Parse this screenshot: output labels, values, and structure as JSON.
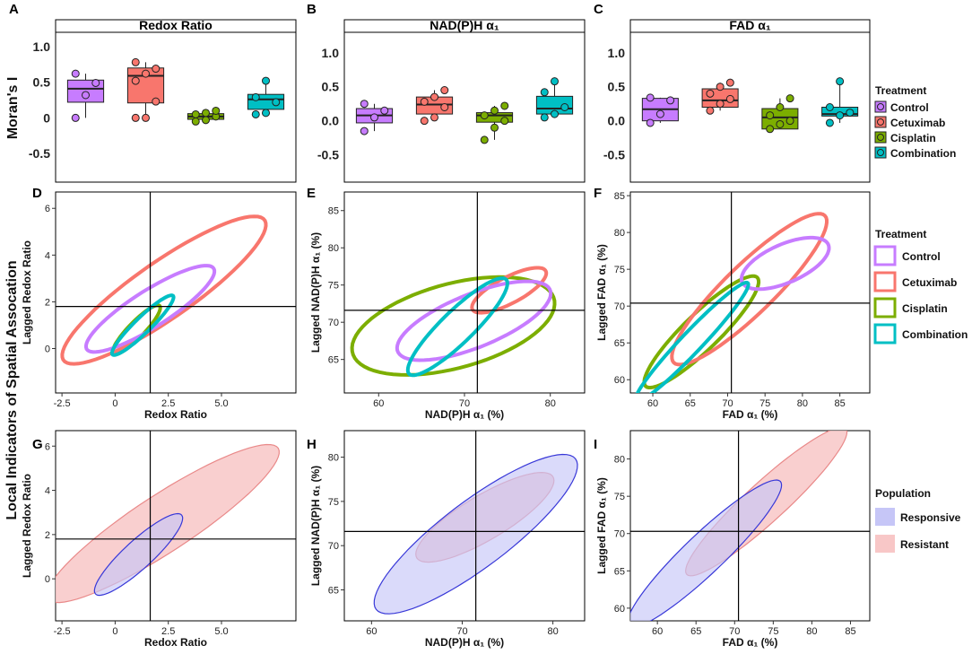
{
  "figure": {
    "panel_letters": [
      "A",
      "B",
      "C",
      "D",
      "E",
      "F",
      "G",
      "H",
      "I"
    ],
    "row_label": "Local Indicators of Spatial Assocation",
    "moran_label": "Moran's I"
  },
  "chart_data": [
    {
      "id": "A",
      "type": "box",
      "title": "Redox Ratio",
      "ylabel": "Moran's I",
      "ylim": [
        -0.9,
        1.2
      ],
      "yticks": [
        "1.0",
        "0.5",
        "0",
        "-0.5"
      ],
      "ytick_values": [
        1.0,
        0.5,
        0,
        -0.5
      ],
      "categories": [
        "Control",
        "Cetuximab",
        "Cisplatin",
        "Combination"
      ],
      "boxes": [
        {
          "q1": 0.22,
          "median": 0.41,
          "q3": 0.53,
          "points": [
            0.0,
            0.32,
            0.49,
            0.62
          ]
        },
        {
          "q1": 0.21,
          "median": 0.59,
          "q3": 0.7,
          "points": [
            0.0,
            0.0,
            0.23,
            0.52,
            0.62,
            0.69,
            0.78
          ]
        },
        {
          "q1": -0.02,
          "median": 0.02,
          "q3": 0.06,
          "points": [
            -0.05,
            -0.03,
            0.02,
            0.05,
            0.07,
            0.1
          ]
        },
        {
          "q1": 0.12,
          "median": 0.26,
          "q3": 0.33,
          "points": [
            0.05,
            0.07,
            0.22,
            0.29,
            0.52
          ]
        }
      ]
    },
    {
      "id": "B",
      "type": "box",
      "title": "NAD(P)H α₁",
      "ylim": [
        -0.9,
        1.3
      ],
      "yticks": [
        "1.0",
        "0.5",
        "0.0",
        "-0.5"
      ],
      "ytick_values": [
        1.0,
        0.5,
        0,
        -0.5
      ],
      "categories": [
        "Control",
        "Cetuximab",
        "Cisplatin",
        "Combination"
      ],
      "boxes": [
        {
          "q1": -0.03,
          "median": 0.08,
          "q3": 0.18,
          "points": [
            -0.15,
            0.05,
            0.15,
            0.25
          ]
        },
        {
          "q1": 0.1,
          "median": 0.24,
          "q3": 0.35,
          "points": [
            0.0,
            0.05,
            0.2,
            0.28,
            0.35,
            0.45
          ]
        },
        {
          "q1": -0.02,
          "median": 0.08,
          "q3": 0.12,
          "points": [
            -0.28,
            -0.1,
            0.0,
            0.08,
            0.15,
            0.22
          ]
        },
        {
          "q1": 0.1,
          "median": 0.18,
          "q3": 0.36,
          "points": [
            0.05,
            0.1,
            0.2,
            0.42,
            0.58
          ]
        }
      ]
    },
    {
      "id": "C",
      "type": "box",
      "title": "FAD α₁",
      "ylim": [
        -0.9,
        1.3
      ],
      "yticks": [
        "1.0",
        "0.5",
        "0.0",
        "-0.5"
      ],
      "ytick_values": [
        1.0,
        0.5,
        0,
        -0.5
      ],
      "categories": [
        "Control",
        "Cetuximab",
        "Cisplatin",
        "Combination"
      ],
      "boxes": [
        {
          "q1": 0.0,
          "median": 0.17,
          "q3": 0.33,
          "points": [
            -0.03,
            0.1,
            0.3,
            0.34
          ]
        },
        {
          "q1": 0.2,
          "median": 0.3,
          "q3": 0.47,
          "points": [
            0.15,
            0.25,
            0.32,
            0.4,
            0.5,
            0.56
          ]
        },
        {
          "q1": -0.12,
          "median": 0.05,
          "q3": 0.18,
          "points": [
            -0.12,
            -0.05,
            0.0,
            0.08,
            0.2,
            0.33
          ]
        },
        {
          "q1": 0.07,
          "median": 0.1,
          "q3": 0.2,
          "points": [
            -0.03,
            0.08,
            0.12,
            0.2,
            0.58
          ]
        }
      ]
    },
    {
      "id": "D",
      "type": "ellipse",
      "xlabel": "Redox Ratio",
      "ylabel": "Lagged Redox Ratio",
      "xlim": [
        -2.8,
        8.5
      ],
      "ylim": [
        -1.9,
        6.7
      ],
      "xticks": [
        "-2.5",
        "0",
        "2.5",
        "5.0"
      ],
      "xtick_values": [
        -2.5,
        0,
        2.5,
        5.0
      ],
      "yticks": [
        "6",
        "4",
        "2",
        "0"
      ],
      "ytick_values": [
        6,
        4,
        2,
        0
      ],
      "crosshair": [
        1.65,
        1.8
      ],
      "series": [
        {
          "name": "Control",
          "cx": 1.65,
          "cy": 1.7,
          "rx": 3.45,
          "ry": 0.8,
          "angle": 0.52
        },
        {
          "name": "Cetuximab",
          "cx": 2.3,
          "cy": 2.5,
          "rx": 5.6,
          "ry": 1.25,
          "angle": 0.56
        },
        {
          "name": "Cisplatin",
          "cx": 1.0,
          "cy": 0.8,
          "rx": 1.5,
          "ry": 0.35,
          "angle": 0.75
        },
        {
          "name": "Combination",
          "cx": 1.3,
          "cy": 1.0,
          "rx": 1.9,
          "ry": 0.35,
          "angle": 0.72
        }
      ]
    },
    {
      "id": "E",
      "type": "ellipse",
      "xlabel": "NAD(P)H α₁ (%)",
      "ylabel": "Lagged NAD(P)H α₁ (%)",
      "xlim": [
        56,
        84
      ],
      "ylim": [
        60.5,
        87.5
      ],
      "xticks": [
        "60",
        "70",
        "80"
      ],
      "xtick_values": [
        60,
        70,
        80
      ],
      "yticks": [
        "85",
        "80",
        "75",
        "70",
        "65"
      ],
      "ytick_values": [
        85,
        80,
        75,
        70,
        65
      ],
      "crosshair": [
        71.5,
        71.6
      ],
      "series": [
        {
          "name": "Control",
          "cx": 71.1,
          "cy": 70.2,
          "rx": 9.8,
          "ry": 3.5,
          "angle": 0.45
        },
        {
          "name": "Cetuximab",
          "cx": 75.2,
          "cy": 74.3,
          "rx": 5.0,
          "ry": 1.7,
          "angle": 0.56
        },
        {
          "name": "Cisplatin",
          "cx": 68.7,
          "cy": 69.5,
          "rx": 12.3,
          "ry": 5.6,
          "angle": 0.32
        },
        {
          "name": "Combination",
          "cx": 69.2,
          "cy": 69.4,
          "rx": 8.5,
          "ry": 2.0,
          "angle": 0.85
        }
      ]
    },
    {
      "id": "F",
      "type": "ellipse",
      "xlabel": "FAD α₁ (%)",
      "ylabel": "Lagged FAD α₁ (%)",
      "xlim": [
        57,
        89
      ],
      "ylim": [
        58.2,
        85.5
      ],
      "xticks": [
        "60",
        "65",
        "70",
        "75",
        "80",
        "85"
      ],
      "xtick_values": [
        60,
        65,
        70,
        75,
        80,
        85
      ],
      "yticks": [
        "85",
        "80",
        "75",
        "70",
        "65",
        "60"
      ],
      "ytick_values": [
        85,
        80,
        75,
        70,
        65,
        60
      ],
      "crosshair": [
        70.5,
        70.4
      ],
      "series": [
        {
          "name": "Control",
          "cx": 77.7,
          "cy": 75.8,
          "rx": 6.3,
          "ry": 2.6,
          "angle": 0.42
        },
        {
          "name": "Cetuximab",
          "cx": 72.9,
          "cy": 72.3,
          "rx": 14.2,
          "ry": 3.3,
          "angle": 0.78
        },
        {
          "name": "Cisplatin",
          "cx": 66.5,
          "cy": 66.5,
          "rx": 10.5,
          "ry": 2.4,
          "angle": 0.78
        },
        {
          "name": "Combination",
          "cx": 65.2,
          "cy": 65.1,
          "rx": 11.0,
          "ry": 1.4,
          "angle": 0.82
        }
      ]
    },
    {
      "id": "G",
      "type": "ellipse",
      "xlabel": "Redox Ratio",
      "ylabel": "Lagged Redox Ratio",
      "xlim": [
        -2.8,
        8.5
      ],
      "ylim": [
        -1.9,
        6.7
      ],
      "xticks": [
        "-2.5",
        "0",
        "2.5",
        "5.0"
      ],
      "xtick_values": [
        -2.5,
        0,
        2.5,
        5.0
      ],
      "yticks": [
        "6",
        "4",
        "2",
        "0"
      ],
      "ytick_values": [
        6,
        4,
        2,
        0
      ],
      "crosshair": [
        1.65,
        1.8
      ],
      "series": [
        {
          "name": "Responsive",
          "cx": 1.1,
          "cy": 1.1,
          "rx": 2.7,
          "ry": 0.65,
          "angle": 0.72
        },
        {
          "name": "Resistant",
          "cx": 2.25,
          "cy": 2.5,
          "rx": 6.4,
          "ry": 1.3,
          "angle": 0.56
        }
      ]
    },
    {
      "id": "H",
      "type": "ellipse",
      "xlabel": "NAD(P)H α₁ (%)",
      "ylabel": "Lagged NAD(P)H α₁ (%)",
      "xlim": [
        57,
        83.5
      ],
      "ylim": [
        61.5,
        83
      ],
      "xticks": [
        "60",
        "70",
        "80"
      ],
      "xtick_values": [
        60,
        70,
        80
      ],
      "yticks": [
        "80",
        "75",
        "70",
        "65"
      ],
      "ytick_values": [
        80,
        75,
        70,
        65
      ],
      "crosshair": [
        71.5,
        71.6
      ],
      "series": [
        {
          "name": "Responsive",
          "cx": 71.5,
          "cy": 71.3,
          "rx": 13.9,
          "ry": 3.7,
          "angle": 0.66
        },
        {
          "name": "Resistant",
          "cx": 72.5,
          "cy": 73.2,
          "rx": 8.8,
          "ry": 2.5,
          "angle": 0.55
        }
      ]
    },
    {
      "id": "I",
      "type": "ellipse",
      "xlabel": "FAD α₁ (%)",
      "ylabel": "Lagged FAD α₁ (%)",
      "xlim": [
        56.5,
        87.5
      ],
      "ylim": [
        58.3,
        83.8
      ],
      "xticks": [
        "60",
        "65",
        "70",
        "75",
        "80",
        "85"
      ],
      "xtick_values": [
        60,
        65,
        70,
        75,
        80,
        85
      ],
      "yticks": [
        "80",
        "75",
        "70",
        "65",
        "60"
      ],
      "ytick_values": [
        80,
        75,
        70,
        65,
        60
      ],
      "crosshair": [
        70.5,
        70.3
      ],
      "series": [
        {
          "name": "Responsive",
          "cx": 66.1,
          "cy": 67.3,
          "rx": 13.8,
          "ry": 2.6,
          "angle": 0.78
        },
        {
          "name": "Resistant",
          "cx": 74.1,
          "cy": 74.3,
          "rx": 14.2,
          "ry": 2.6,
          "angle": 0.76
        }
      ]
    }
  ],
  "legends": {
    "top": {
      "title": "Treatment",
      "items": [
        "Control",
        "Cetuximab",
        "Cisplatin",
        "Combination"
      ]
    },
    "mid": {
      "title": "Treatment",
      "items": [
        "Control",
        "Cetuximab",
        "Cisplatin",
        "Combination"
      ]
    },
    "bottom": {
      "title": "Population",
      "items": [
        "Responsive",
        "Resistant"
      ]
    }
  },
  "colors": {
    "Control": "#c77cff",
    "Cetuximab": "#f8766d",
    "Cisplatin": "#7cae00",
    "Combination": "#00bfc4",
    "Responsive_fill": "#c6c6f7",
    "Responsive_stroke": "#3838d8",
    "Resistant_fill": "#f8c7c7",
    "Resistant_stroke": "#e98989",
    "overlap": "#c9a4c9"
  }
}
